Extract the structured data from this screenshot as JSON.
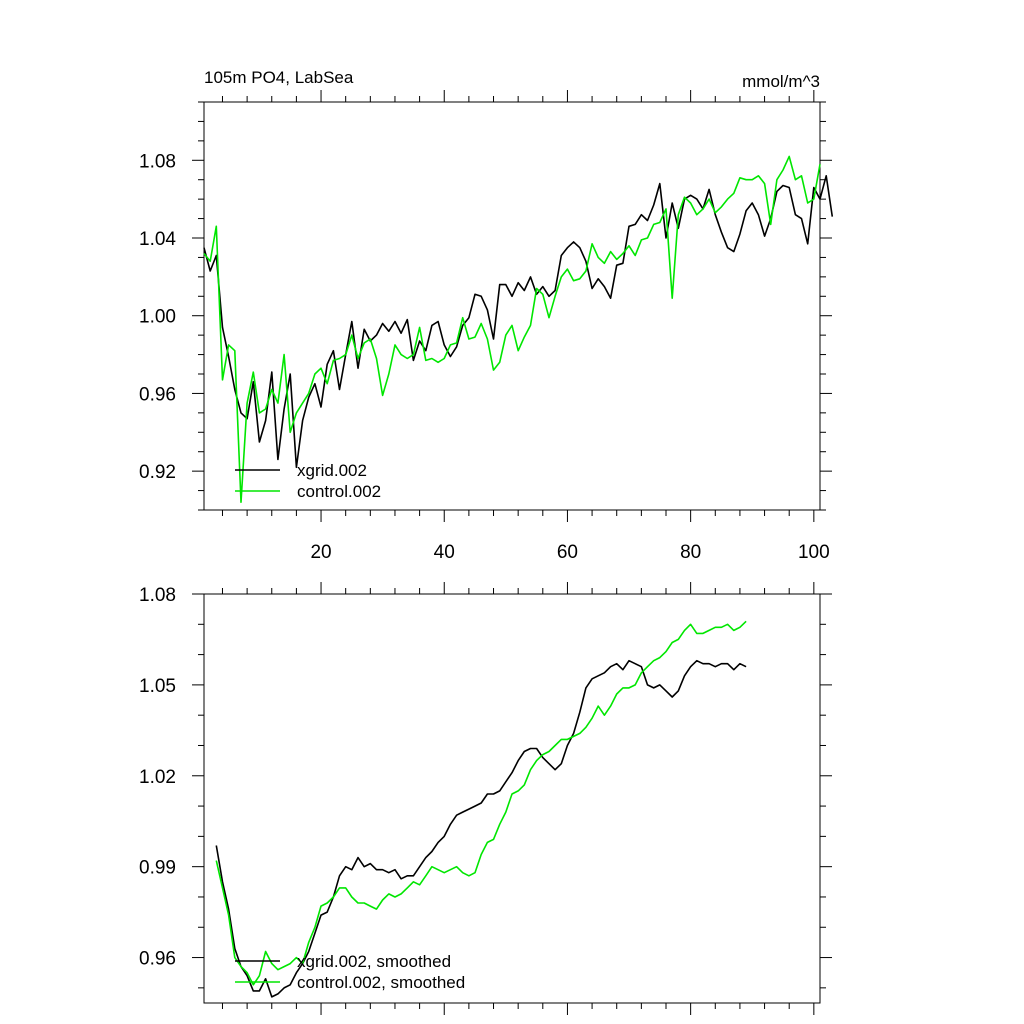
{
  "chart_data": [
    {
      "type": "line",
      "title_left": "105m PO4, LabSea",
      "title_right": "mmol/m^3",
      "xlabel": "",
      "ylabel": "",
      "xlim": [
        1,
        101
      ],
      "ylim": [
        0.9,
        1.11
      ],
      "x_ticks": [
        20,
        40,
        60,
        80,
        100
      ],
      "y_ticks": [
        0.92,
        0.96,
        1.0,
        1.04,
        1.08
      ],
      "y_tick_labels": [
        "0.92",
        "0.96",
        "1.00",
        "1.04",
        "1.08"
      ],
      "legend_position": "bottom-left",
      "series": [
        {
          "name": "xgrid.002",
          "color": "#000000",
          "x_start": 1,
          "values": [
            1.035,
            1.023,
            1.031,
            0.994,
            0.979,
            0.962,
            0.95,
            0.947,
            0.966,
            0.935,
            0.946,
            0.971,
            0.926,
            0.952,
            0.97,
            0.922,
            0.946,
            0.958,
            0.965,
            0.953,
            0.975,
            0.982,
            0.962,
            0.98,
            0.997,
            0.973,
            0.993,
            0.987,
            0.99,
            0.996,
            0.992,
            0.997,
            0.991,
            0.998,
            0.977,
            0.987,
            0.982,
            0.995,
            0.997,
            0.985,
            0.979,
            0.984,
            0.995,
            0.999,
            1.011,
            1.01,
            1.003,
            0.988,
            1.016,
            1.016,
            1.01,
            1.017,
            1.013,
            1.02,
            1.011,
            1.015,
            1.01,
            1.013,
            1.031,
            1.035,
            1.038,
            1.035,
            1.028,
            1.014,
            1.019,
            1.015,
            1.009,
            1.026,
            1.027,
            1.046,
            1.047,
            1.052,
            1.049,
            1.057,
            1.068,
            1.04,
            1.058,
            1.045,
            1.06,
            1.062,
            1.06,
            1.055,
            1.065,
            1.052,
            1.043,
            1.035,
            1.033,
            1.042,
            1.054,
            1.058,
            1.052,
            1.041,
            1.05,
            1.064,
            1.067,
            1.066,
            1.052,
            1.05,
            1.037,
            1.066,
            1.06,
            1.072,
            1.051
          ]
        },
        {
          "name": "control.002",
          "color": "#00e600",
          "x_start": 1,
          "values": [
            1.032,
            1.028,
            1.046,
            0.967,
            0.985,
            0.982,
            0.904,
            0.955,
            0.971,
            0.95,
            0.952,
            0.962,
            0.955,
            0.98,
            0.94,
            0.95,
            0.955,
            0.96,
            0.97,
            0.973,
            0.965,
            0.977,
            0.978,
            0.98,
            0.99,
            0.978,
            0.986,
            0.988,
            0.978,
            0.959,
            0.97,
            0.985,
            0.98,
            0.978,
            0.98,
            0.994,
            0.977,
            0.978,
            0.976,
            0.978,
            0.985,
            0.986,
            0.999,
            0.988,
            0.989,
            0.996,
            0.988,
            0.972,
            0.976,
            0.99,
            0.995,
            0.982,
            0.989,
            0.995,
            1.014,
            1.011,
            0.999,
            1.01,
            1.02,
            1.024,
            1.018,
            1.019,
            1.023,
            1.037,
            1.03,
            1.027,
            1.033,
            1.029,
            1.032,
            1.036,
            1.031,
            1.039,
            1.04,
            1.047,
            1.048,
            1.055,
            1.009,
            1.052,
            1.061,
            1.058,
            1.052,
            1.055,
            1.06,
            1.053,
            1.056,
            1.06,
            1.063,
            1.071,
            1.07,
            1.07,
            1.072,
            1.068,
            1.047,
            1.07,
            1.075,
            1.082,
            1.07,
            1.072,
            1.058,
            1.06,
            1.078
          ]
        }
      ]
    },
    {
      "type": "line",
      "xlim": [
        1,
        101
      ],
      "ylim": [
        0.945,
        1.08
      ],
      "x_ticks": [
        20,
        40,
        60,
        80,
        100
      ],
      "y_ticks": [
        0.96,
        0.99,
        1.02,
        1.05,
        1.08
      ],
      "y_tick_labels": [
        "0.96",
        "0.99",
        "1.02",
        "1.05",
        "1.08"
      ],
      "legend_position": "bottom-left",
      "series": [
        {
          "name": "xgrid.002, smoothed",
          "color": "#000000",
          "x_start": 3,
          "values": [
            0.997,
            0.985,
            0.976,
            0.963,
            0.957,
            0.954,
            0.949,
            0.949,
            0.953,
            0.947,
            0.948,
            0.95,
            0.951,
            0.955,
            0.958,
            0.962,
            0.968,
            0.974,
            0.975,
            0.98,
            0.987,
            0.99,
            0.989,
            0.993,
            0.99,
            0.991,
            0.989,
            0.989,
            0.988,
            0.989,
            0.986,
            0.987,
            0.987,
            0.99,
            0.993,
            0.995,
            0.998,
            1.0,
            1.004,
            1.007,
            1.008,
            1.009,
            1.01,
            1.011,
            1.014,
            1.014,
            1.015,
            1.018,
            1.021,
            1.025,
            1.028,
            1.029,
            1.029,
            1.026,
            1.024,
            1.022,
            1.024,
            1.03,
            1.034,
            1.041,
            1.049,
            1.052,
            1.053,
            1.054,
            1.056,
            1.057,
            1.055,
            1.058,
            1.057,
            1.056,
            1.05,
            1.049,
            1.05,
            1.048,
            1.046,
            1.048,
            1.053,
            1.056,
            1.058,
            1.057,
            1.057,
            1.056,
            1.057,
            1.057,
            1.055,
            1.057,
            1.056
          ]
        },
        {
          "name": "control.002, smoothed",
          "color": "#00e600",
          "x_start": 3,
          "values": [
            0.992,
            0.983,
            0.974,
            0.96,
            0.957,
            0.955,
            0.951,
            0.954,
            0.962,
            0.958,
            0.956,
            0.957,
            0.958,
            0.96,
            0.958,
            0.965,
            0.97,
            0.977,
            0.978,
            0.98,
            0.983,
            0.983,
            0.98,
            0.978,
            0.978,
            0.977,
            0.976,
            0.979,
            0.981,
            0.98,
            0.981,
            0.983,
            0.985,
            0.984,
            0.987,
            0.99,
            0.989,
            0.988,
            0.989,
            0.99,
            0.988,
            0.987,
            0.988,
            0.994,
            0.998,
            0.999,
            1.004,
            1.008,
            1.014,
            1.015,
            1.017,
            1.022,
            1.025,
            1.027,
            1.028,
            1.03,
            1.032,
            1.032,
            1.033,
            1.034,
            1.036,
            1.039,
            1.043,
            1.04,
            1.043,
            1.047,
            1.049,
            1.049,
            1.05,
            1.054,
            1.056,
            1.058,
            1.059,
            1.061,
            1.064,
            1.065,
            1.068,
            1.07,
            1.067,
            1.067,
            1.068,
            1.069,
            1.069,
            1.07,
            1.068,
            1.069,
            1.071
          ]
        }
      ]
    }
  ]
}
